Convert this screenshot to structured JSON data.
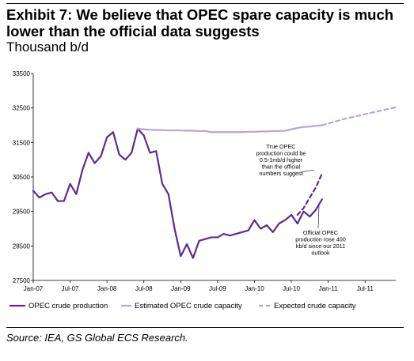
{
  "exhibit": {
    "title": "Exhibit 7: We believe that OPEC spare capacity is much lower than the official data suggests",
    "subtitle": "Thousand b/d",
    "source": "Source: IEA, GS Global ECS Research."
  },
  "chart_data": {
    "type": "line",
    "ylim": [
      27500,
      33500
    ],
    "yticks": [
      27500,
      28500,
      29500,
      30500,
      31500,
      32500,
      33500
    ],
    "x_tick_labels": [
      "Jan-07",
      "Jul-07",
      "Jan-08",
      "Jul-08",
      "Jan-09",
      "Jul-09",
      "Jan-10",
      "Jul-10",
      "Jan-11",
      "Jul-11"
    ],
    "x_start": "Jan-07",
    "x_end": "Dec-11",
    "grid": false,
    "legend_position": "bottom",
    "series": [
      {
        "name": "OPEC crude production",
        "color": "#5b2c91",
        "style": "solid",
        "start": "Jan-07",
        "values": [
          30100,
          29900,
          30000,
          30050,
          29800,
          29800,
          30300,
          30000,
          30700,
          31200,
          30900,
          31100,
          31650,
          31800,
          31150,
          31000,
          31200,
          31900,
          31700,
          31200,
          31250,
          30300,
          30000,
          29000,
          28200,
          28550,
          28150,
          28650,
          28700,
          28750,
          28750,
          28850,
          28800,
          28850,
          28900,
          28950,
          29250,
          29000,
          29100,
          28900,
          29150,
          29250,
          29400,
          29150,
          29500,
          29350,
          29550,
          29850
        ]
      },
      {
        "name": "Estimated OPEC crude capacity",
        "color": "#b8a6d4",
        "style": "solid",
        "start": "Jun-08",
        "values": [
          31900,
          31880,
          31870,
          31860,
          31860,
          31850,
          31850,
          31850,
          31840,
          31840,
          31830,
          31830,
          31800,
          31800,
          31800,
          31800,
          31800,
          31800,
          31810,
          31810,
          31820,
          31820,
          31830,
          31830,
          31840,
          31880,
          31920,
          31950,
          31960,
          31980,
          32000
        ]
      },
      {
        "name": "Expected crude capacity",
        "color": "#b8a6d4",
        "style": "dashed",
        "start": "Dec-10",
        "values": [
          32000,
          32050,
          32100,
          32150,
          32200,
          32240,
          32280,
          32320,
          32360,
          32400,
          32440,
          32480,
          32520
        ]
      },
      {
        "name": "",
        "color": "#5b2c91",
        "style": "dashed",
        "start": "Aug-10",
        "values": [
          29400,
          29600,
          29900,
          30200,
          30600
        ]
      }
    ],
    "annotations": [
      {
        "lines": [
          "True OPEC",
          "production could be",
          "0.5-1mb/d higher",
          "than the official",
          "numbers suggest"
        ]
      },
      {
        "lines": [
          "Official OPEC",
          "production rose 400",
          "kb/d since our 2011",
          "outlook"
        ]
      }
    ]
  }
}
